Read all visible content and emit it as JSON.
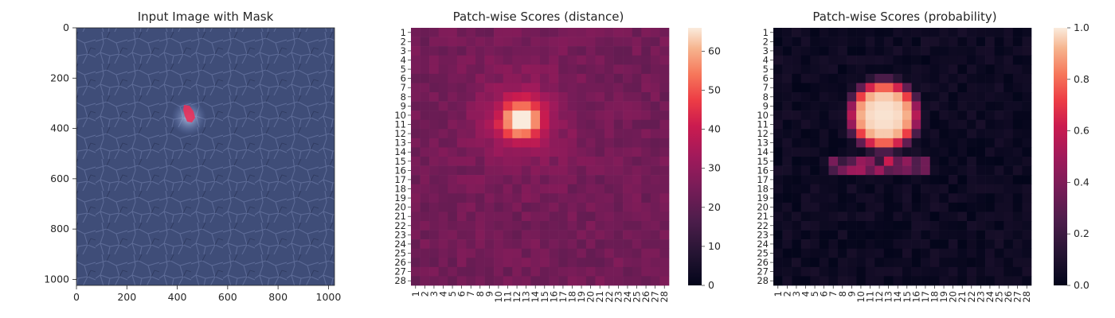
{
  "chart_data": [
    {
      "type": "image",
      "title": "Input Image with Mask",
      "xlim": [
        0,
        1024
      ],
      "ylim": [
        1024,
        0
      ],
      "xticks": [
        0,
        200,
        400,
        600,
        800,
        1000
      ],
      "yticks": [
        0,
        200,
        400,
        600,
        800,
        1000
      ],
      "image_description_colors": {
        "background": "#3f4d78",
        "mask": "#e8305a"
      },
      "mask_center": [
        440,
        345
      ]
    },
    {
      "type": "heatmap",
      "title": "Patch-wise Scores (distance)",
      "rows": 28,
      "cols": 28,
      "colorbar_range": [
        0,
        66
      ],
      "colorbar_ticks": [
        0,
        10,
        20,
        30,
        40,
        50,
        60
      ],
      "background_level": 24,
      "hotspot": {
        "center_row": 10.5,
        "center_col": 12.5,
        "peak": 66
      },
      "colormap": "rocket"
    },
    {
      "type": "heatmap",
      "title": "Patch-wise Scores (probability)",
      "rows": 28,
      "cols": 28,
      "colorbar_range": [
        0,
        1
      ],
      "colorbar_ticks": [
        "0.0",
        "0.2",
        "0.4",
        "0.6",
        "0.8",
        "1.0"
      ],
      "background_level": 0.02,
      "hotspot": {
        "center_row": 10.0,
        "center_col": 12.5,
        "peak": 1.0
      },
      "colormap": "rocket"
    }
  ]
}
